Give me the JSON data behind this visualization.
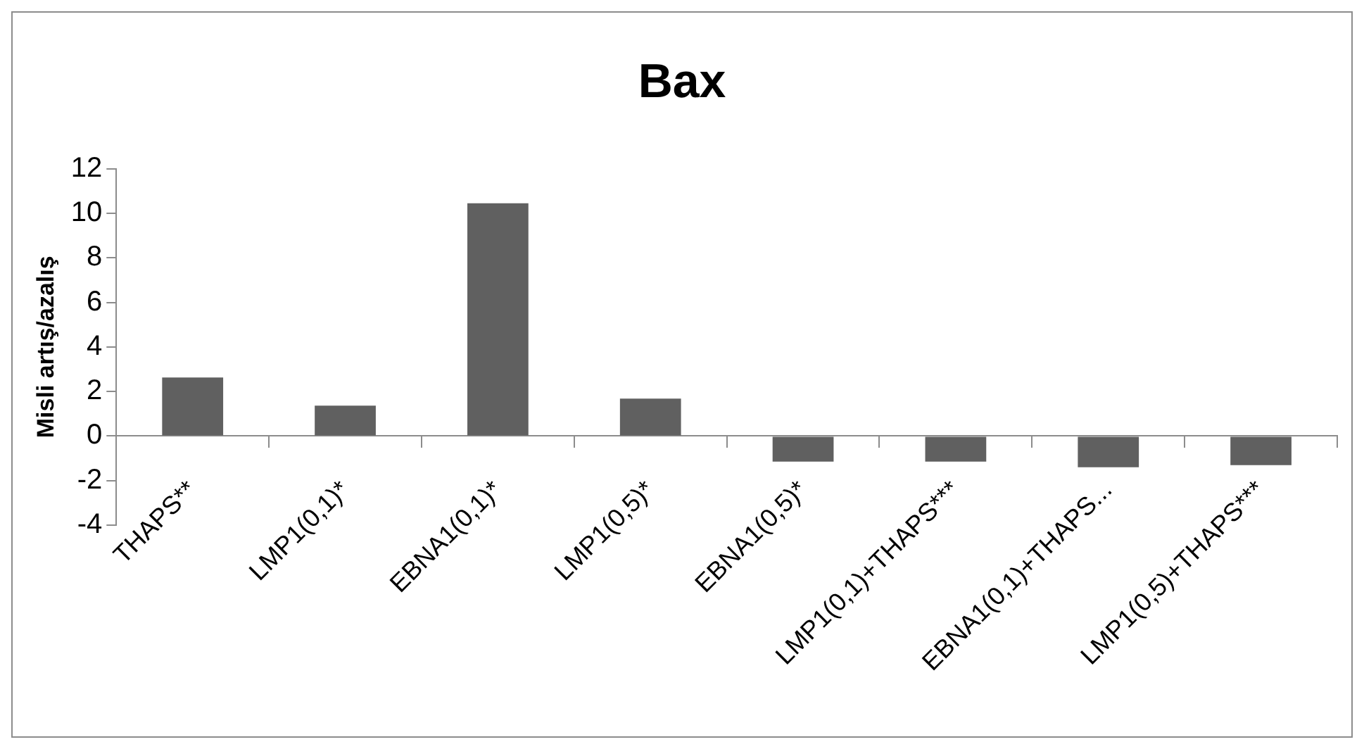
{
  "chart_data": {
    "type": "bar",
    "title": "Bax",
    "ylabel": "Misli artış/azalış",
    "categories": [
      "THAPS**",
      "LMP1(0,1)*",
      "EBNA1(0,1)*",
      "LMP1(0,5)*",
      "EBNA1(0,5)*",
      "LMP1(0,1)+THAPS***",
      "EBNA1(0,1)+THAPS...",
      "LMP1(0,5)+THAPS***"
    ],
    "values": [
      2.63,
      1.36,
      10.45,
      1.68,
      -1.15,
      -1.15,
      -1.4,
      -1.31
    ],
    "color": "#606060",
    "ylim": [
      -4,
      12
    ],
    "yticks": [
      -4,
      -2,
      0,
      2,
      4,
      6,
      8,
      10,
      12
    ],
    "grid": false,
    "legend": false
  }
}
